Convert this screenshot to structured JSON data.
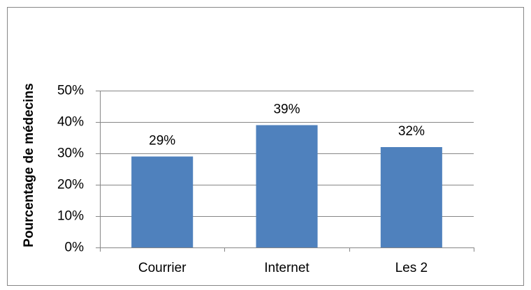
{
  "chart_data": {
    "type": "bar",
    "ylabel": "Pourcentage de médecins",
    "categories": [
      "Courrier",
      "Internet",
      "Les 2"
    ],
    "values": [
      29,
      39,
      32
    ],
    "value_labels": [
      "29%",
      "39%",
      "32%"
    ],
    "color": "#4f81bd",
    "ylim": [
      0,
      50
    ],
    "yticks": [
      {
        "value": 0,
        "label": "0%"
      },
      {
        "value": 10,
        "label": "10%"
      },
      {
        "value": 20,
        "label": "20%"
      },
      {
        "value": 30,
        "label": "30%"
      },
      {
        "value": 40,
        "label": "40%"
      },
      {
        "value": 50,
        "label": "50%"
      }
    ],
    "grid": true
  }
}
